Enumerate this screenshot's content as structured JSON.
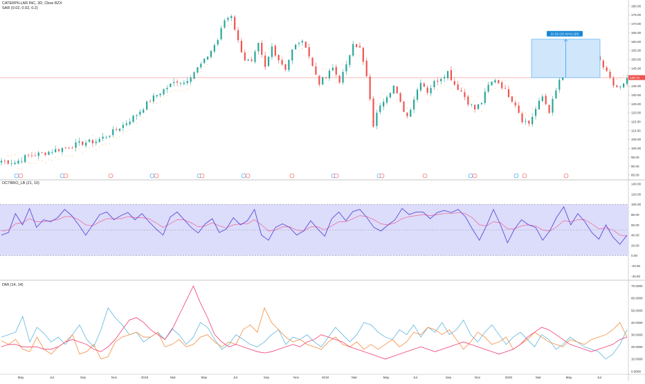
{
  "header": {
    "symbol_line": "CATERPILLAR INC, 3D, Cboe BZX",
    "sar_line": "SAR (0.02, 0.02, 0.2)",
    "osc_line": "OCTBRO_LB (21, 10)",
    "dmi_line": "DMI (14, 14)"
  },
  "measure_label": "21.52 (15.41%) 2(0)",
  "colors": {
    "bull": "#26a69a",
    "bear": "#ef5350",
    "sar": "#ff9800",
    "osc_line": "#5b4cd6",
    "osc_signal": "#f06292",
    "band_fill": "#dcdcfb",
    "dmi_plus": "#5ab4e0",
    "dmi_minus": "#f48b3c",
    "dmi_adx": "#ef3b70",
    "measure": "#2196f3",
    "last_price": "#ef5350"
  },
  "chart_data": [
    {
      "type": "candlestick",
      "x_labels": [
        "May",
        "Jul",
        "Sep",
        "Nov",
        "2018",
        "Mar",
        "May",
        "Jul",
        "Sep",
        "Nov",
        "2019",
        "Mar",
        "May",
        "Jul",
        "Sep",
        "Nov",
        "2020",
        "Mar",
        "May",
        "Jul"
      ],
      "y_ticks": [
        "180.00",
        "175.00",
        "170.00",
        "165.00",
        "160.00",
        "155.00",
        "150.00",
        "145.00",
        "140.00",
        "135.00",
        "130.00",
        "125.00",
        "120.00",
        "115.00",
        "110.00",
        "105.00",
        "100.00",
        "95.00",
        "90.00",
        "85.00"
      ],
      "ylim": [
        83,
        181
      ],
      "last_price": 139.72,
      "last_price_label": "139.72",
      "close_path": [
        [
          0,
          93
        ],
        [
          4,
          92
        ],
        [
          8,
          96
        ],
        [
          12,
          97
        ],
        [
          16,
          99
        ],
        [
          20,
          101
        ],
        [
          24,
          103
        ],
        [
          28,
          104
        ],
        [
          32,
          108
        ],
        [
          36,
          113
        ],
        [
          40,
          119
        ],
        [
          44,
          127
        ],
        [
          48,
          133
        ],
        [
          52,
          138
        ],
        [
          54,
          137
        ],
        [
          56,
          141
        ],
        [
          60,
          149
        ],
        [
          64,
          161
        ],
        [
          66,
          172
        ],
        [
          68,
          175
        ],
        [
          70,
          160
        ],
        [
          72,
          150
        ],
        [
          74,
          148
        ],
        [
          76,
          158
        ],
        [
          78,
          145
        ],
        [
          80,
          157
        ],
        [
          82,
          150
        ],
        [
          84,
          145
        ],
        [
          86,
          155
        ],
        [
          88,
          160
        ],
        [
          90,
          158
        ],
        [
          92,
          146
        ],
        [
          94,
          137
        ],
        [
          96,
          140
        ],
        [
          98,
          145
        ],
        [
          100,
          138
        ],
        [
          102,
          146
        ],
        [
          104,
          160
        ],
        [
          106,
          156
        ],
        [
          108,
          140
        ],
        [
          110,
          113
        ],
        [
          112,
          125
        ],
        [
          114,
          130
        ],
        [
          116,
          135
        ],
        [
          118,
          125
        ],
        [
          120,
          118
        ],
        [
          122,
          128
        ],
        [
          124,
          138
        ],
        [
          126,
          132
        ],
        [
          128,
          137
        ],
        [
          130,
          140
        ],
        [
          132,
          143
        ],
        [
          134,
          136
        ],
        [
          136,
          132
        ],
        [
          138,
          126
        ],
        [
          140,
          122
        ],
        [
          142,
          126
        ],
        [
          144,
          135
        ],
        [
          146,
          139
        ],
        [
          148,
          135
        ],
        [
          150,
          130
        ],
        [
          152,
          125
        ],
        [
          154,
          116
        ],
        [
          156,
          114
        ],
        [
          158,
          122
        ],
        [
          160,
          129
        ],
        [
          162,
          121
        ],
        [
          164,
          132
        ],
        [
          166,
          145
        ],
        [
          168,
          149
        ],
        [
          170,
          145
        ],
        [
          172,
          143
        ],
        [
          174,
          148
        ],
        [
          176,
          151
        ],
        [
          178,
          145
        ],
        [
          180,
          140
        ],
        [
          182,
          133
        ],
        [
          184,
          136
        ],
        [
          185,
          139.7
        ]
      ],
      "bull_color": "#26a69a",
      "bear_color": "#ef5350"
    },
    {
      "type": "line",
      "y_ticks": [
        "140.00",
        "120.00",
        "100.00",
        "80.00",
        "60.00",
        "40.00",
        "20.00",
        "0.00",
        "-20.00",
        "-40.00"
      ],
      "ylim": [
        -44,
        145
      ],
      "band": [
        0,
        100
      ],
      "midline": 50,
      "series": [
        {
          "name": "",
          "values": [
            40,
            45,
            82,
            60,
            92,
            55,
            70,
            66,
            74,
            90,
            78,
            60,
            40,
            60,
            80,
            85,
            70,
            78,
            84,
            70,
            82,
            66,
            52,
            40,
            75,
            85,
            70,
            55,
            44,
            62,
            72,
            45,
            52,
            74,
            60,
            68,
            90,
            40,
            30,
            55,
            62,
            55,
            40,
            48,
            68,
            52,
            38,
            72,
            85,
            68,
            86,
            90,
            74,
            55,
            48,
            60,
            70,
            92,
            80,
            85,
            85,
            72,
            84,
            88,
            84,
            90,
            76,
            52,
            30,
            58,
            90,
            60,
            25,
            52,
            70,
            60,
            55,
            30,
            48,
            75,
            95,
            60,
            82,
            66,
            45,
            32,
            60,
            36,
            22,
            40
          ]
        },
        {
          "name": "",
          "values": [
            48,
            50,
            62,
            64,
            72,
            66,
            66,
            68,
            70,
            76,
            76,
            70,
            60,
            58,
            66,
            72,
            72,
            72,
            76,
            74,
            74,
            72,
            64,
            55,
            62,
            70,
            70,
            64,
            56,
            58,
            64,
            58,
            54,
            60,
            62,
            62,
            70,
            60,
            48,
            50,
            56,
            56,
            50,
            48,
            56,
            56,
            50,
            58,
            66,
            66,
            72,
            78,
            76,
            70,
            62,
            60,
            64,
            72,
            76,
            78,
            80,
            78,
            80,
            82,
            82,
            84,
            82,
            74,
            60,
            58,
            66,
            64,
            52,
            52,
            58,
            60,
            58,
            50,
            48,
            56,
            68,
            66,
            70,
            70,
            62,
            52,
            54,
            50,
            40,
            38
          ]
        }
      ]
    },
    {
      "type": "line",
      "y_ticks": [
        "70.0000",
        "60.0000",
        "50.0000",
        "40.0000",
        "30.0000",
        "20.0000",
        "10.0000",
        "0.0000"
      ],
      "ylim": [
        -2,
        73
      ],
      "series": [
        {
          "name": "",
          "values": [
            28,
            30,
            32,
            45,
            24,
            36,
            31,
            24,
            28,
            22,
            30,
            38,
            26,
            20,
            34,
            52,
            44,
            38,
            30,
            32,
            24,
            28,
            32,
            26,
            35,
            30,
            22,
            28,
            40,
            36,
            26,
            18,
            22,
            30,
            26,
            22,
            20,
            24,
            30,
            34,
            22,
            28,
            26,
            30,
            24,
            20,
            28,
            36,
            30,
            24,
            30,
            40,
            38,
            32,
            28,
            26,
            34,
            30,
            38,
            28,
            36,
            32,
            40,
            30,
            34,
            42,
            30,
            24,
            32,
            38,
            30,
            22,
            28,
            32,
            26,
            20,
            30,
            26,
            18,
            22,
            28,
            24,
            20,
            18,
            16,
            10,
            14,
            22,
            34
          ]
        },
        {
          "name": "",
          "values": [
            25,
            22,
            26,
            18,
            16,
            28,
            18,
            14,
            20,
            24,
            30,
            14,
            16,
            22,
            10,
            12,
            24,
            28,
            30,
            32,
            28,
            28,
            32,
            20,
            22,
            26,
            20,
            22,
            28,
            30,
            24,
            20,
            24,
            22,
            34,
            38,
            32,
            52,
            40,
            34,
            28,
            24,
            26,
            22,
            20,
            18,
            24,
            28,
            22,
            20,
            24,
            18,
            22,
            18,
            22,
            26,
            20,
            24,
            32,
            30,
            36,
            34,
            30,
            34,
            26,
            18,
            24,
            32,
            28,
            22,
            24,
            28,
            18,
            22,
            26,
            32,
            28,
            24,
            22,
            20,
            26,
            24,
            22,
            26,
            28,
            30,
            34,
            40,
            28
          ]
        },
        {
          "name": "",
          "values": [
            20,
            22,
            22,
            20,
            20,
            20,
            18,
            18,
            20,
            24,
            26,
            24,
            22,
            18,
            16,
            20,
            26,
            34,
            42,
            44,
            40,
            34,
            30,
            26,
            34,
            46,
            58,
            70,
            56,
            44,
            30,
            24,
            20,
            22,
            20,
            18,
            16,
            15,
            16,
            18,
            20,
            22,
            20,
            24,
            26,
            30,
            28,
            26,
            24,
            20,
            18,
            16,
            14,
            12,
            10,
            12,
            14,
            16,
            18,
            20,
            18,
            16,
            18,
            20,
            22,
            24,
            22,
            20,
            18,
            16,
            14,
            16,
            18,
            22,
            28,
            32,
            36,
            34,
            30,
            26,
            22,
            20,
            18,
            16,
            18,
            20,
            22,
            26,
            28
          ]
        }
      ]
    }
  ]
}
